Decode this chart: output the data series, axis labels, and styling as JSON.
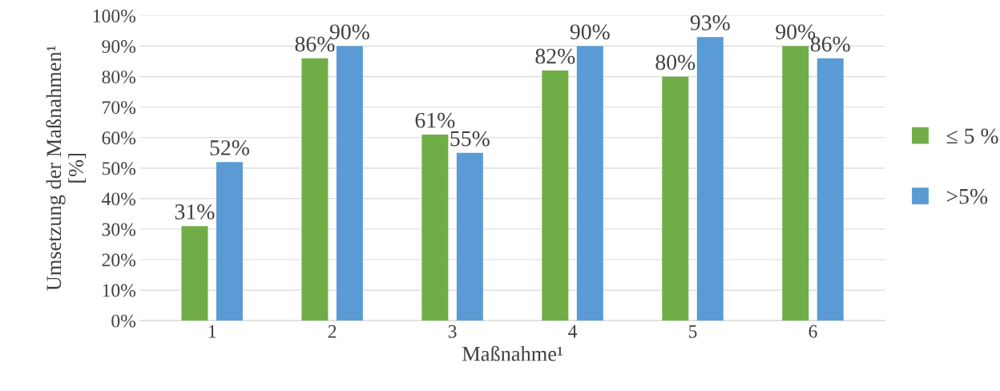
{
  "chart_data": {
    "type": "bar",
    "xlabel": "Maßnahme¹",
    "ylabel": "Umsetzung der Maßnahmen¹\n[%]",
    "categories": [
      "1",
      "2",
      "3",
      "4",
      "5",
      "6"
    ],
    "series": [
      {
        "name": "≤ 5 %",
        "color": "#70ad47",
        "values": [
          31,
          86,
          61,
          82,
          80,
          90
        ],
        "value_labels": [
          "31%",
          "86%",
          "61%",
          "82%",
          "80%",
          "90%"
        ]
      },
      {
        "name": ">5%",
        "color": "#5b9bd5",
        "values": [
          52,
          90,
          55,
          90,
          93,
          86
        ],
        "value_labels": [
          "52%",
          "90%",
          "55%",
          "90%",
          "93%",
          "86%"
        ]
      }
    ],
    "ylim": [
      0,
      100
    ],
    "yticks": [
      {
        "value": 0,
        "label": "0%"
      },
      {
        "value": 10,
        "label": "10%"
      },
      {
        "value": 20,
        "label": "20%"
      },
      {
        "value": 30,
        "label": "30%"
      },
      {
        "value": 40,
        "label": "40%"
      },
      {
        "value": 50,
        "label": "50%"
      },
      {
        "value": 60,
        "label": "60%"
      },
      {
        "value": 70,
        "label": "70%"
      },
      {
        "value": 80,
        "label": "80%"
      },
      {
        "value": 90,
        "label": "90%"
      },
      {
        "value": 100,
        "label": "100%"
      }
    ],
    "grid": "y",
    "legend": "right"
  }
}
